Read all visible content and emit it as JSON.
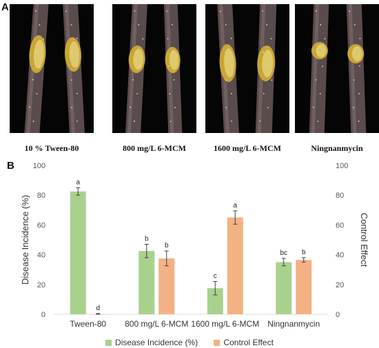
{
  "panel_a": {
    "letter": "A",
    "captions": [
      "10 % Tween-80",
      "800 mg/L 6-MCM",
      "1600 mg/L 6-MCM",
      "Ningnanmycin"
    ]
  },
  "panel_b": {
    "letter": "B"
  },
  "colors": {
    "disease_incidence": "#a9d18e",
    "control_effect": "#f4b183",
    "axis": "#d9d9d9",
    "error_bar": "#404040"
  },
  "chart_data": {
    "type": "bar",
    "categories": [
      "Tween-80",
      "800 mg/L 6-MCM",
      "1600 mg/L 6-MCM",
      "Ningnanmycin"
    ],
    "series": [
      {
        "name": "Disease Incidence (%)",
        "values": [
          82.5,
          42.5,
          17.5,
          35
        ],
        "errors": [
          2.5,
          4.5,
          4.5,
          2.5
        ],
        "letters": [
          "a",
          "b",
          "c",
          "bc"
        ]
      },
      {
        "name": "Control Effect",
        "values": [
          0,
          37.5,
          65,
          36.5
        ],
        "errors": [
          0.5,
          5,
          4.5,
          1.5
        ],
        "letters": [
          "d",
          "b",
          "a",
          "b"
        ]
      }
    ],
    "ylabel": "Disease Incidence (%)",
    "y2label": "Control Effect",
    "ylim": [
      0,
      100
    ],
    "y2lim": [
      0,
      100
    ],
    "yticks": [
      0,
      20,
      40,
      60,
      80,
      100
    ],
    "legend_position": "bottom"
  }
}
